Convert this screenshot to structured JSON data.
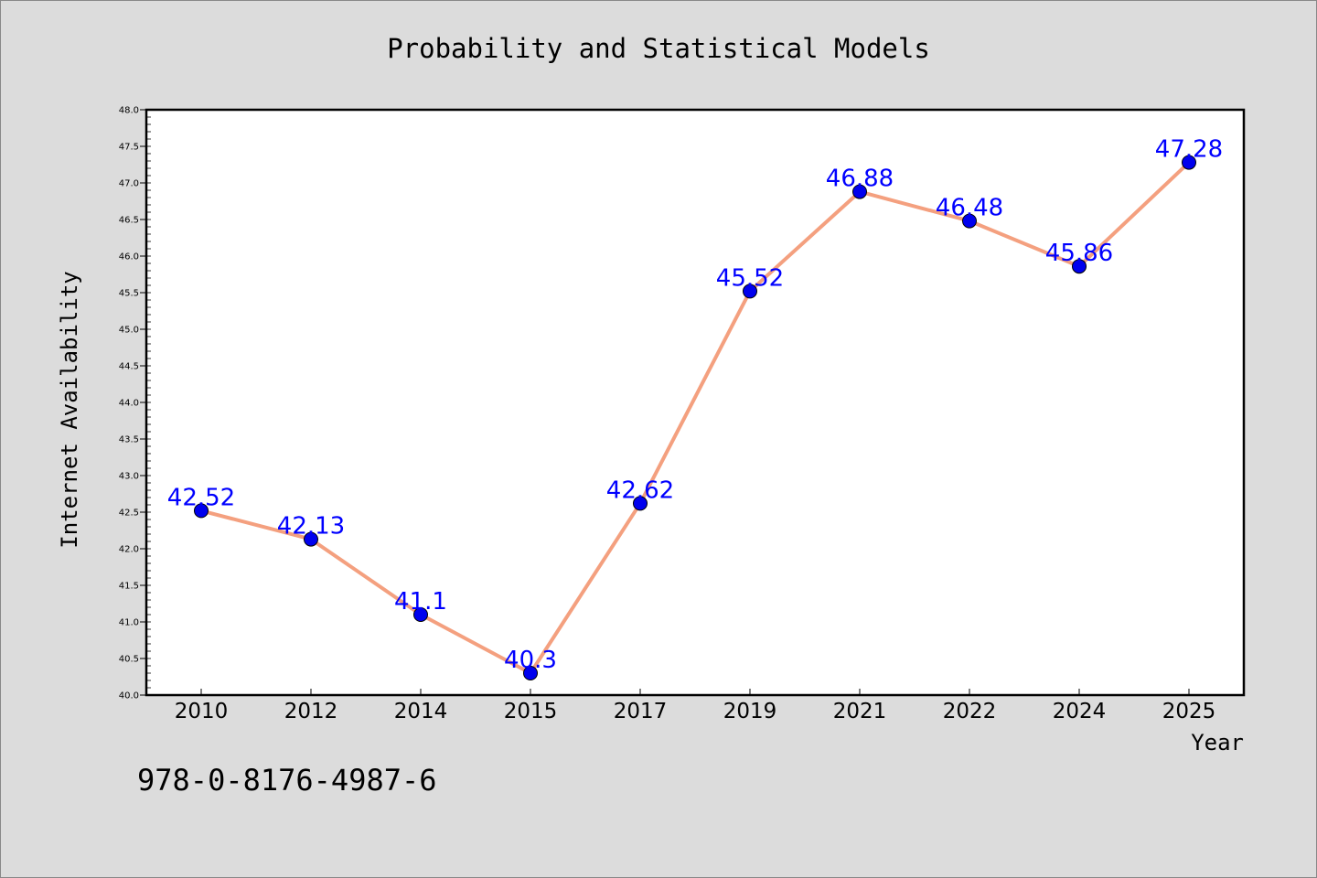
{
  "chart_data": {
    "type": "line",
    "title": "Probability and Statistical Models",
    "xlabel": "Year",
    "ylabel": "Internet Availability",
    "categories": [
      "2010",
      "2012",
      "2014",
      "2015",
      "2017",
      "2019",
      "2021",
      "2022",
      "2024",
      "2025"
    ],
    "series": [
      {
        "values": [
          42.52,
          42.13,
          41.1,
          40.3,
          42.62,
          45.52,
          46.88,
          46.48,
          45.86,
          47.28
        ],
        "labels": [
          "42.52",
          "42.13",
          "41.1",
          "40.3",
          "42.62",
          "45.52",
          "46.88",
          "46.48",
          "45.86",
          "47.28"
        ],
        "line_color": "#f4a07f",
        "marker_color": "#0000ee",
        "label_color": "#0000ff"
      }
    ],
    "ylim": [
      40.0,
      48.0
    ],
    "y_ticks": [
      "40.0",
      "40.5",
      "41.0",
      "41.5",
      "42.0",
      "42.5",
      "43.0",
      "43.5",
      "44.0",
      "44.5",
      "45.0",
      "45.5",
      "46.0",
      "46.5",
      "47.0",
      "47.5",
      "48.0"
    ],
    "grid": false,
    "legend": "none",
    "background": "#dcdcdc",
    "plot_background": "#ffffff"
  },
  "footer_text": "978-0-8176-4987-6"
}
